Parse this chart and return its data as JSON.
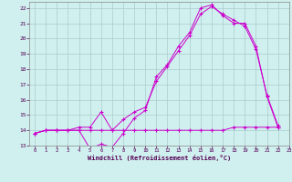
{
  "background_color": "#cff0ee",
  "grid_color": "#aacccc",
  "line_color": "#cc00cc",
  "xlim": [
    -0.5,
    23
  ],
  "ylim": [
    13,
    22.4
  ],
  "xlabel": "Windchill (Refroidissement éolien,°C)",
  "xticks": [
    0,
    1,
    2,
    3,
    4,
    5,
    6,
    7,
    8,
    9,
    10,
    11,
    12,
    13,
    14,
    15,
    16,
    17,
    18,
    19,
    20,
    21,
    22,
    23
  ],
  "yticks": [
    13,
    14,
    15,
    16,
    17,
    18,
    19,
    20,
    21,
    22
  ],
  "figsize": [
    3.2,
    2.0
  ],
  "dpi": 100,
  "s1": [
    13.8,
    14.0,
    14.0,
    14.0,
    14.0,
    12.8,
    13.1,
    12.9,
    13.8,
    14.8,
    15.3,
    17.5,
    18.3,
    19.5,
    20.4,
    22.0,
    22.2,
    21.5,
    21.0,
    21.0,
    19.5,
    16.2,
    14.2
  ],
  "s2": [
    13.8,
    14.0,
    14.0,
    14.0,
    14.2,
    14.2,
    15.2,
    14.0,
    14.7,
    15.2,
    15.5,
    17.2,
    18.2,
    19.2,
    20.2,
    21.6,
    22.1,
    21.6,
    21.2,
    20.8,
    19.3,
    16.3,
    14.3
  ],
  "s3": [
    13.8,
    14.0,
    14.0,
    14.0,
    14.0,
    14.0,
    14.0,
    14.0,
    14.0,
    14.0,
    14.0,
    14.0,
    14.0,
    14.0,
    14.0,
    14.0,
    14.0,
    14.0,
    14.2,
    14.2,
    14.2,
    14.2,
    14.2
  ]
}
